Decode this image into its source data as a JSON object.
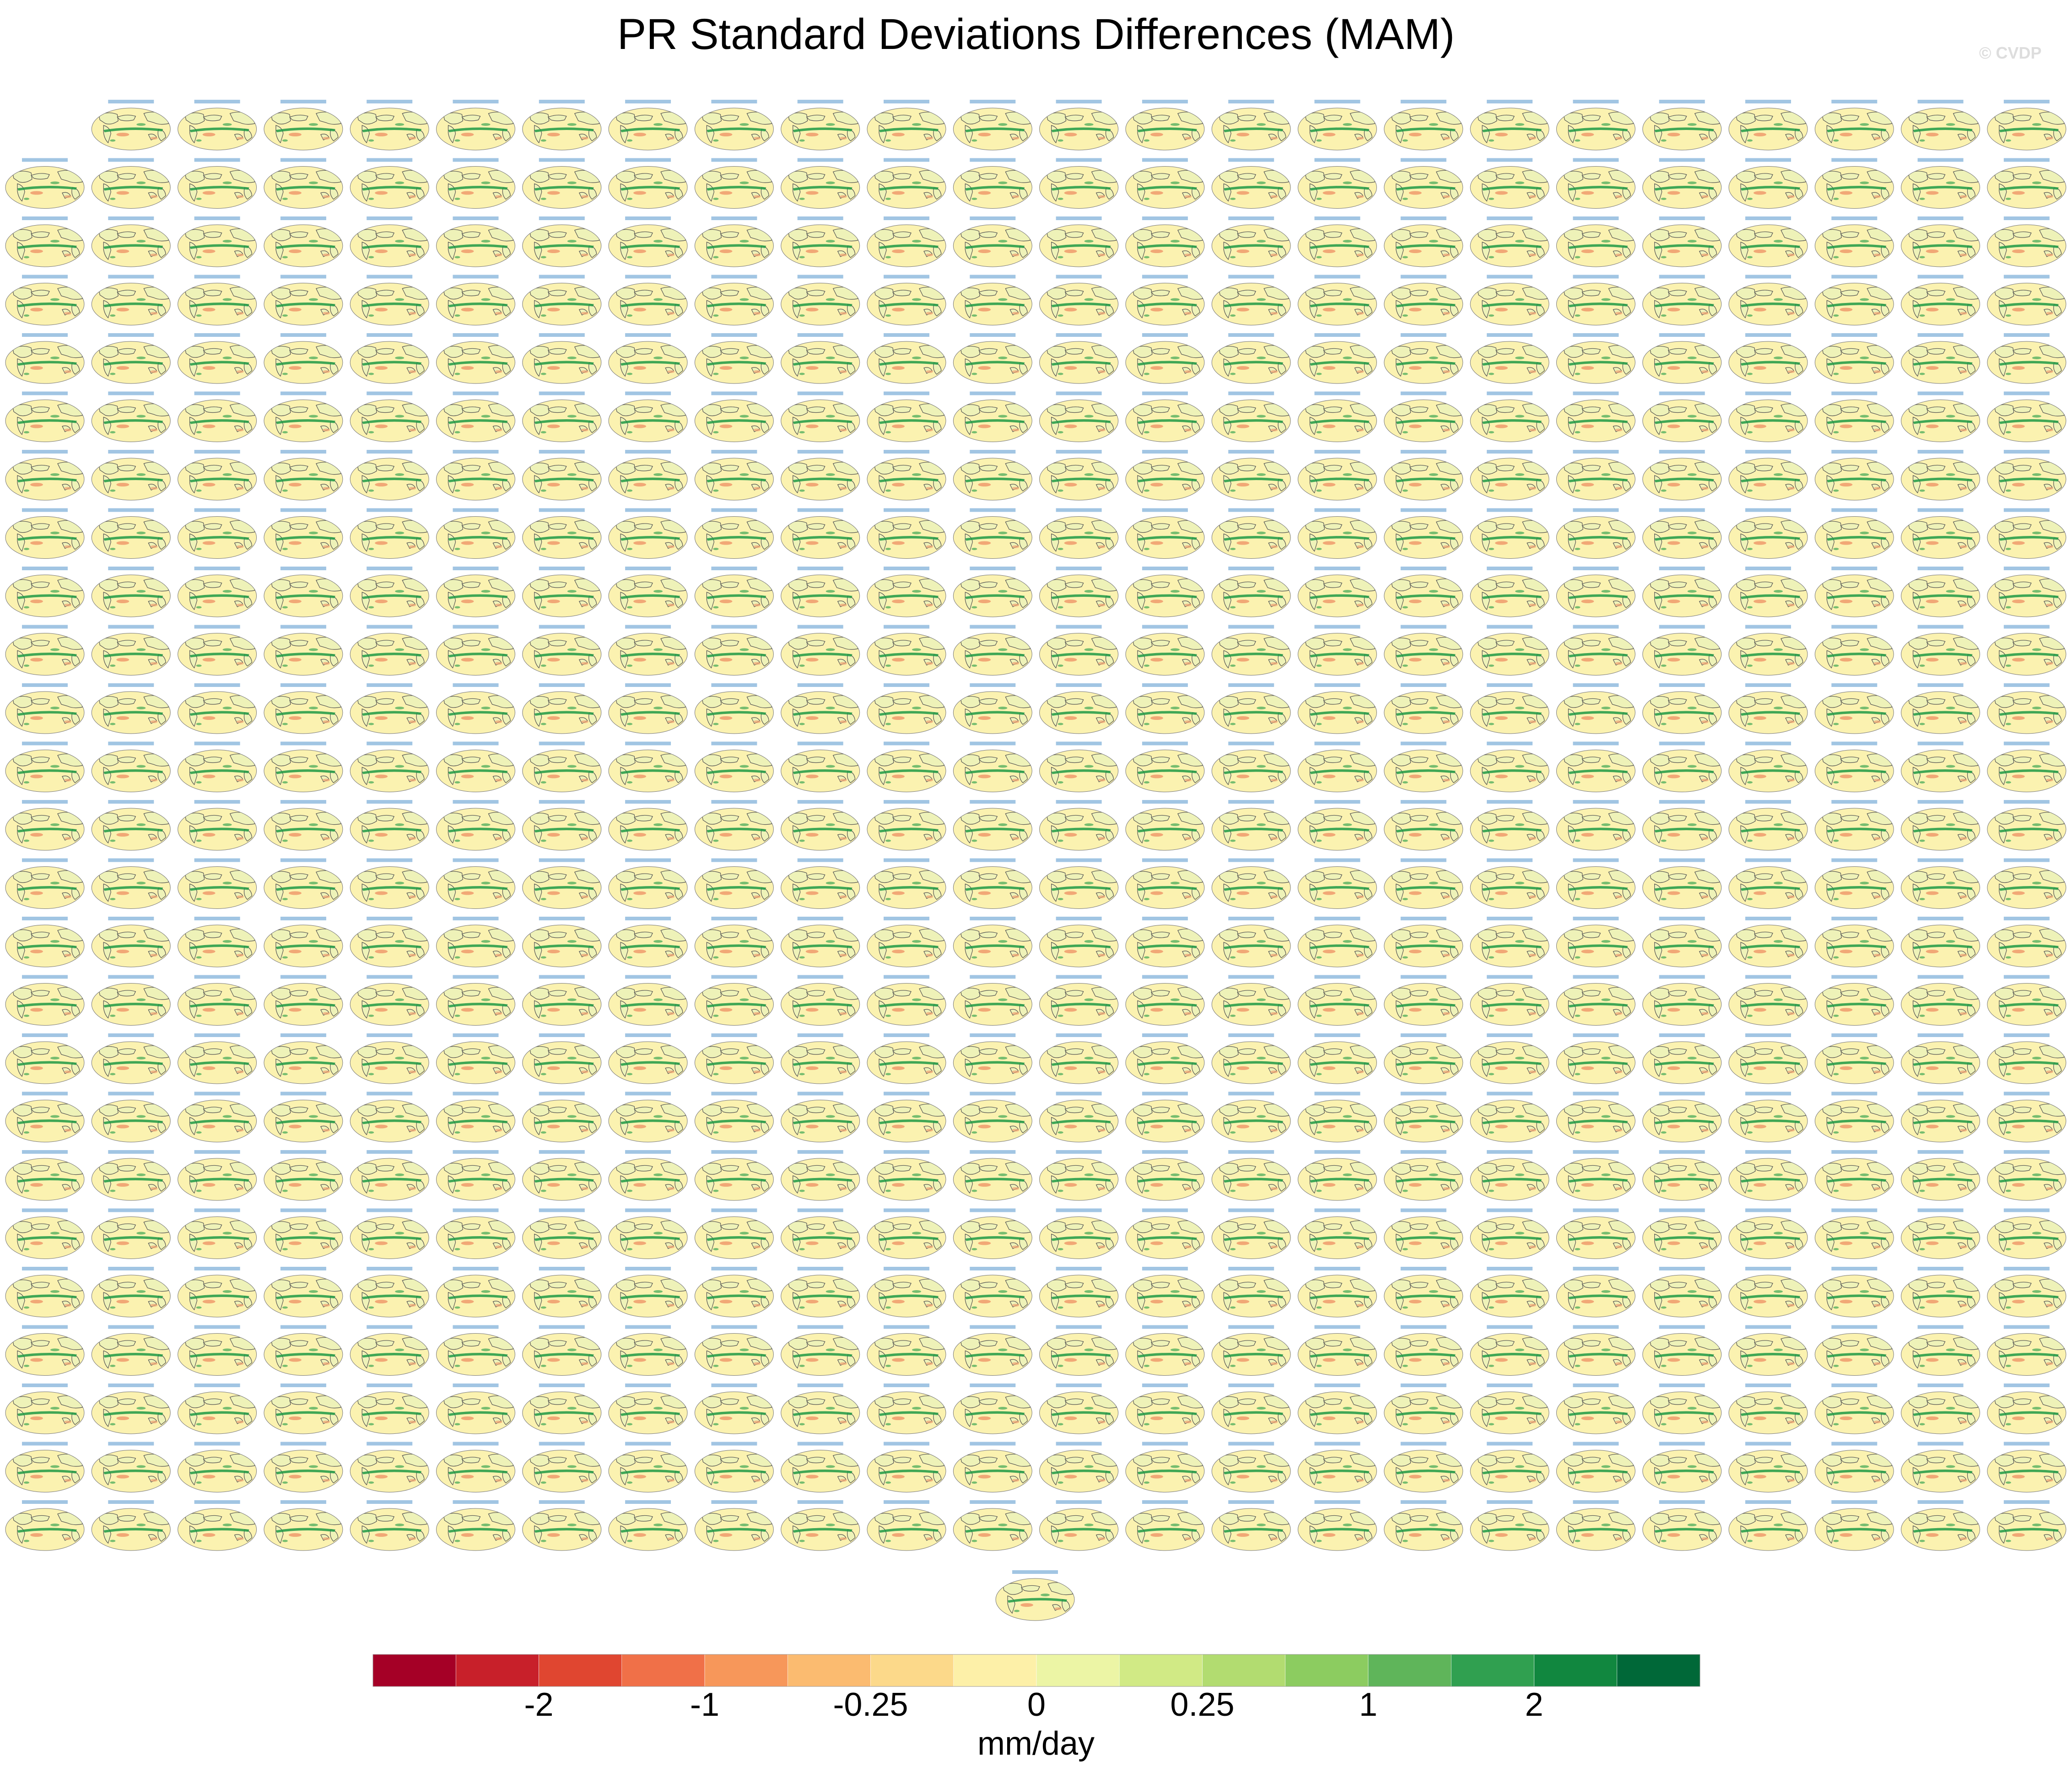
{
  "title": "PR Standard Deviations Differences (MAM)",
  "watermark": "© CVDP",
  "colors": {
    "colorbar": [
      "#a50026",
      "#c8202a",
      "#e04630",
      "#f07048",
      "#f7975a",
      "#fbbb70",
      "#fcd98a",
      "#fdf0a8",
      "#ecf5a5",
      "#d1ea85",
      "#b2dc70",
      "#8ccc60",
      "#5fb55a",
      "#30a050",
      "#11873f",
      "#006838"
    ],
    "ocean": "#fbf2b0",
    "land": "#eef2b8",
    "positive": "#1e9a45",
    "negative": "#f0a070",
    "coastline": "#505050",
    "panel_title": "#2f7fc0"
  },
  "chart_data": {
    "type": "heatmap",
    "title": "PR Standard Deviations Differences (MAM)",
    "layout": {
      "grid_rows": 25,
      "grid_cols": 24,
      "first_row_panels": 23,
      "extra_panels": 1,
      "total_panels": 600
    },
    "colorbar": {
      "orientation": "horizontal",
      "levels": 16,
      "tick_labels": [
        "-2",
        "-1",
        "-0.25",
        "0",
        "0.25",
        "1",
        "2"
      ],
      "tick_boundaries": [
        2,
        4,
        6,
        8,
        10,
        12,
        14
      ],
      "units": "mm/day"
    }
  }
}
